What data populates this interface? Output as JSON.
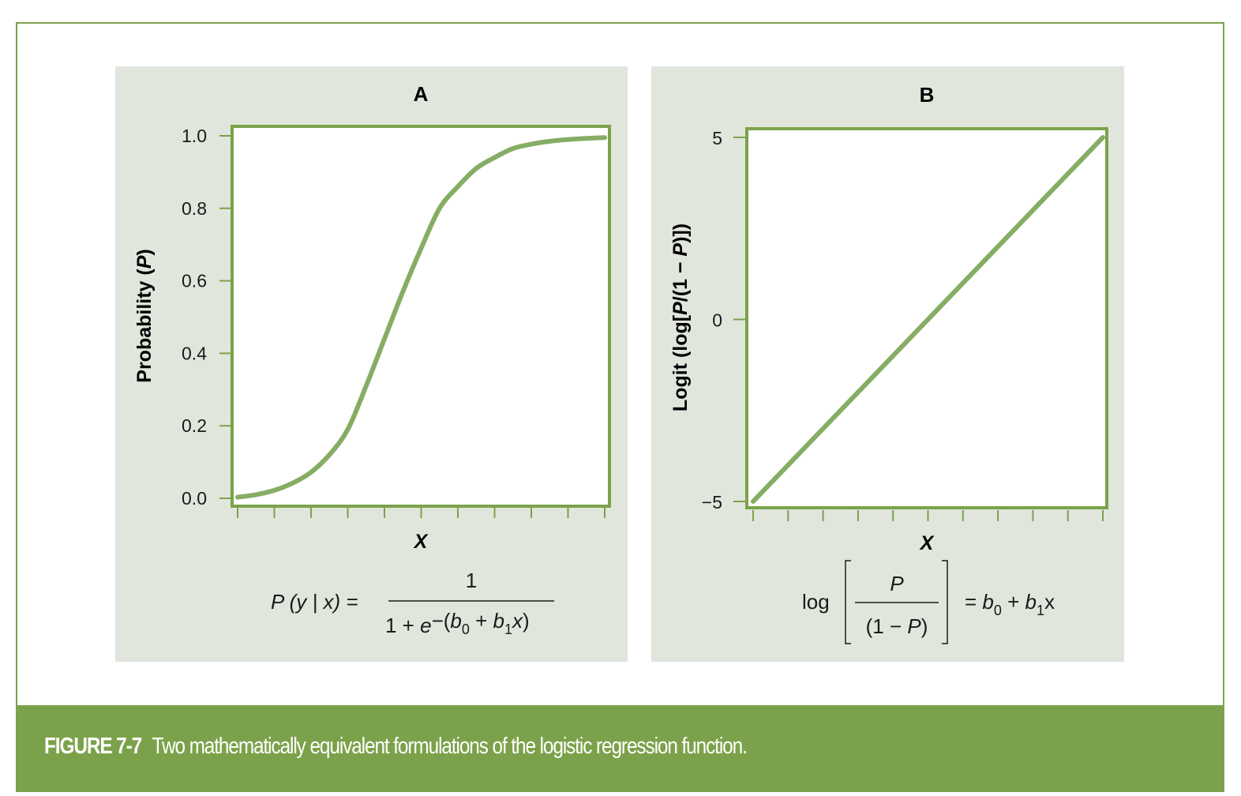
{
  "caption": {
    "label": "FIGURE 7-7",
    "text": "Two mathematically equivalent formulations of the logistic regression function."
  },
  "colors": {
    "panel_bg": "#e1e6dc",
    "accent": "#7ba24a",
    "curve": "#86ad64",
    "plot_bg": "#ffffff"
  },
  "chart_data": [
    {
      "type": "line",
      "title": "A",
      "xlabel": "X",
      "ylabel": "Probability (P)",
      "ylim": [
        0,
        1
      ],
      "yticks": [
        "0.0",
        "0.2",
        "0.4",
        "0.6",
        "0.8",
        "1.0"
      ],
      "x_tick_count": 11,
      "x_tick_labels": [],
      "series": [
        {
          "x": [
            0,
            0.5,
            1,
            1.5,
            2,
            2.5,
            3,
            3.5,
            4,
            4.5,
            5,
            5.5,
            6,
            6.5,
            7,
            7.5,
            8,
            8.5,
            9,
            9.5,
            10
          ],
          "values": [
            0.003,
            0.01,
            0.022,
            0.042,
            0.072,
            0.12,
            0.19,
            0.31,
            0.44,
            0.57,
            0.69,
            0.8,
            0.86,
            0.91,
            0.94,
            0.965,
            0.977,
            0.985,
            0.99,
            0.993,
            0.995
          ]
        }
      ],
      "equation": {
        "lhs": "P (y | x) =",
        "numerator": "1",
        "denominator_base": "1 + e",
        "exponent": "−(b",
        "exp_sub0": "0",
        "exp_mid": " + b",
        "exp_sub1": "1",
        "exp_end": "x)"
      }
    },
    {
      "type": "line",
      "title": "B",
      "xlabel": "X",
      "ylabel": "Logit (log[P/(1 − P)])",
      "ylim": [
        -5,
        5
      ],
      "yticks": [
        "−5",
        "0",
        "5"
      ],
      "x_tick_count": 11,
      "x_tick_labels": [],
      "series": [
        {
          "x": [
            0,
            10
          ],
          "values": [
            -5,
            5
          ]
        }
      ],
      "equation": {
        "log": "log",
        "numerator": "P",
        "denominator": "(1 − P)",
        "rhs_eq": "= b",
        "rhs_sub0": "0",
        "rhs_mid": " + b",
        "rhs_sub1": "1",
        "rhs_end": "x"
      }
    }
  ]
}
